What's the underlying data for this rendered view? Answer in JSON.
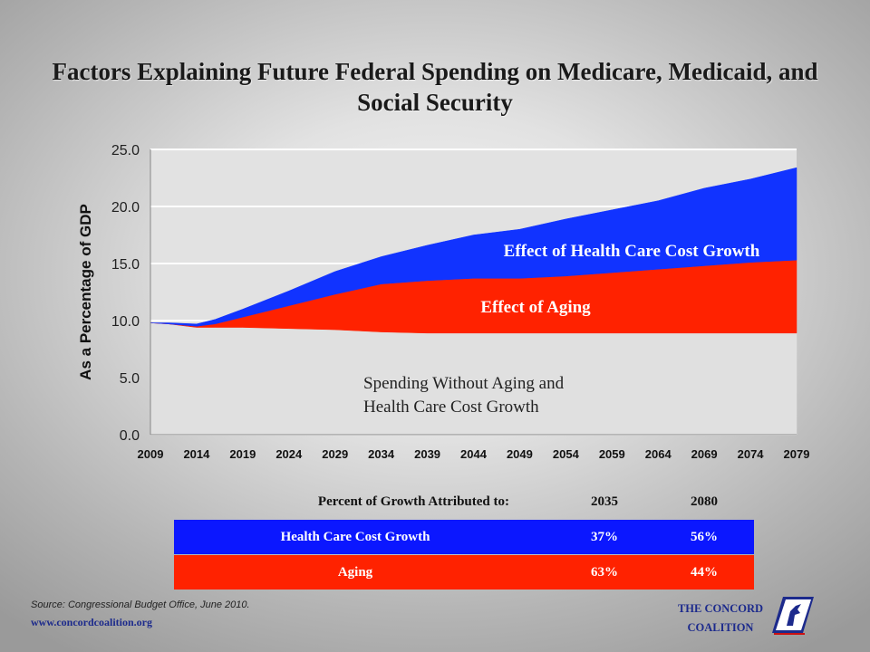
{
  "title": "Factors Explaining Future Federal Spending on Medicare, Medicaid, and Social Security",
  "chart_data": {
    "type": "area",
    "ylabel": "As a Percentage of GDP",
    "ylim": [
      0,
      25
    ],
    "yticks": [
      "0.0",
      "5.0",
      "10.0",
      "15.0",
      "20.0",
      "25.0"
    ],
    "xlim": [
      2009,
      2079
    ],
    "xticks": [
      "2009",
      "2014",
      "2019",
      "2024",
      "2029",
      "2034",
      "2039",
      "2044",
      "2049",
      "2054",
      "2059",
      "2064",
      "2069",
      "2074",
      "2079"
    ],
    "grid": true,
    "x": [
      2009,
      2011,
      2014,
      2016,
      2019,
      2024,
      2029,
      2034,
      2039,
      2044,
      2049,
      2054,
      2059,
      2064,
      2069,
      2074,
      2079
    ],
    "series": [
      {
        "name": "Spending Without Aging and Health Care Cost Growth",
        "color": "#e0e0e0",
        "values": [
          9.8,
          9.7,
          9.4,
          9.4,
          9.4,
          9.3,
          9.2,
          9.0,
          8.9,
          8.9,
          8.9,
          8.9,
          8.9,
          8.9,
          8.9,
          8.9,
          8.9
        ]
      },
      {
        "name": "Effect of Aging",
        "color": "#ff2200",
        "values": [
          0.0,
          0.0,
          0.1,
          0.3,
          0.9,
          2.0,
          3.1,
          4.2,
          4.6,
          4.8,
          4.8,
          5.0,
          5.3,
          5.6,
          5.9,
          6.2,
          6.4
        ]
      },
      {
        "name": "Effect of Health Care Cost Growth",
        "color": "#1133ff",
        "values": [
          0.0,
          0.1,
          0.2,
          0.4,
          0.7,
          1.3,
          2.0,
          2.4,
          3.1,
          3.8,
          4.3,
          5.0,
          5.5,
          6.0,
          6.8,
          7.3,
          8.1
        ]
      }
    ],
    "annotations": {
      "health": "Effect of Health Care Cost Growth",
      "aging": "Effect of Aging",
      "base_line1": "Spending Without Aging and",
      "base_line2": "Health Care Cost Growth"
    }
  },
  "table": {
    "header": {
      "label": "Percent of Growth Attributed to:",
      "col1": "2035",
      "col2": "2080"
    },
    "rows": [
      {
        "label": "Health Care Cost Growth",
        "col1": "37%",
        "col2": "56%",
        "color": "#0b17ff"
      },
      {
        "label": "Aging",
        "col1": "63%",
        "col2": "44%",
        "color": "#ff2200"
      }
    ]
  },
  "footer": {
    "source": "Source: Congressional Budget Office, June 2010.",
    "website": "www.concordcoalition.org",
    "logo_line1": "THE CONCORD",
    "logo_line2": "COALITION"
  }
}
